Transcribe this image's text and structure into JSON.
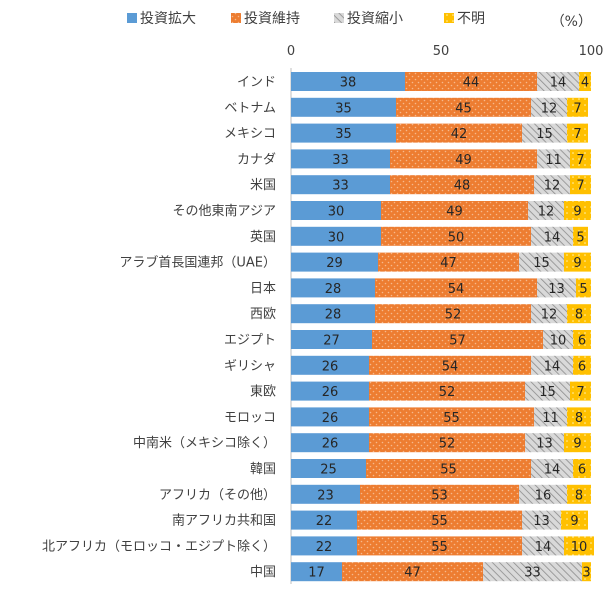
{
  "chart_data": {
    "type": "bar",
    "orientation": "horizontal",
    "stacked": true,
    "unit_label": "（%）",
    "xlim": [
      0,
      100
    ],
    "x_ticks": [
      "0",
      "50",
      "100"
    ],
    "legend_position": "top",
    "categories": [
      "インド",
      "ベトナム",
      "メキシコ",
      "カナダ",
      "米国",
      "その他東南アジア",
      "英国",
      "アラブ首長国連邦（UAE）",
      "日本",
      "西欧",
      "エジプト",
      "ギリシャ",
      "東欧",
      "モロッコ",
      "中南米（メキシコ除く）",
      "韓国",
      "アフリカ（その他）",
      "南アフリカ共和国",
      "北アフリカ（モロッコ・エジプト除く）",
      "中国"
    ],
    "series": [
      {
        "name": "投資拡大",
        "color": "#5b9bd5",
        "pattern": "solid",
        "values": [
          38,
          35,
          35,
          33,
          33,
          30,
          30,
          29,
          28,
          28,
          27,
          26,
          26,
          26,
          26,
          25,
          23,
          22,
          22,
          17
        ]
      },
      {
        "name": "投資維持",
        "color": "#ed7d31",
        "pattern": "dots",
        "values": [
          44,
          45,
          42,
          49,
          48,
          49,
          50,
          47,
          54,
          52,
          57,
          54,
          52,
          55,
          52,
          55,
          53,
          55,
          55,
          47
        ]
      },
      {
        "name": "投資縮小",
        "color": "#a6a6a6",
        "pattern": "hatch",
        "values": [
          14,
          12,
          15,
          11,
          12,
          12,
          14,
          15,
          13,
          12,
          10,
          14,
          15,
          11,
          13,
          14,
          16,
          13,
          14,
          33
        ]
      },
      {
        "name": "不明",
        "color": "#ffc000",
        "pattern": "sparkle",
        "values": [
          4,
          7,
          7,
          7,
          7,
          9,
          5,
          9,
          5,
          8,
          6,
          6,
          7,
          8,
          9,
          6,
          8,
          9,
          10,
          3
        ]
      }
    ]
  }
}
